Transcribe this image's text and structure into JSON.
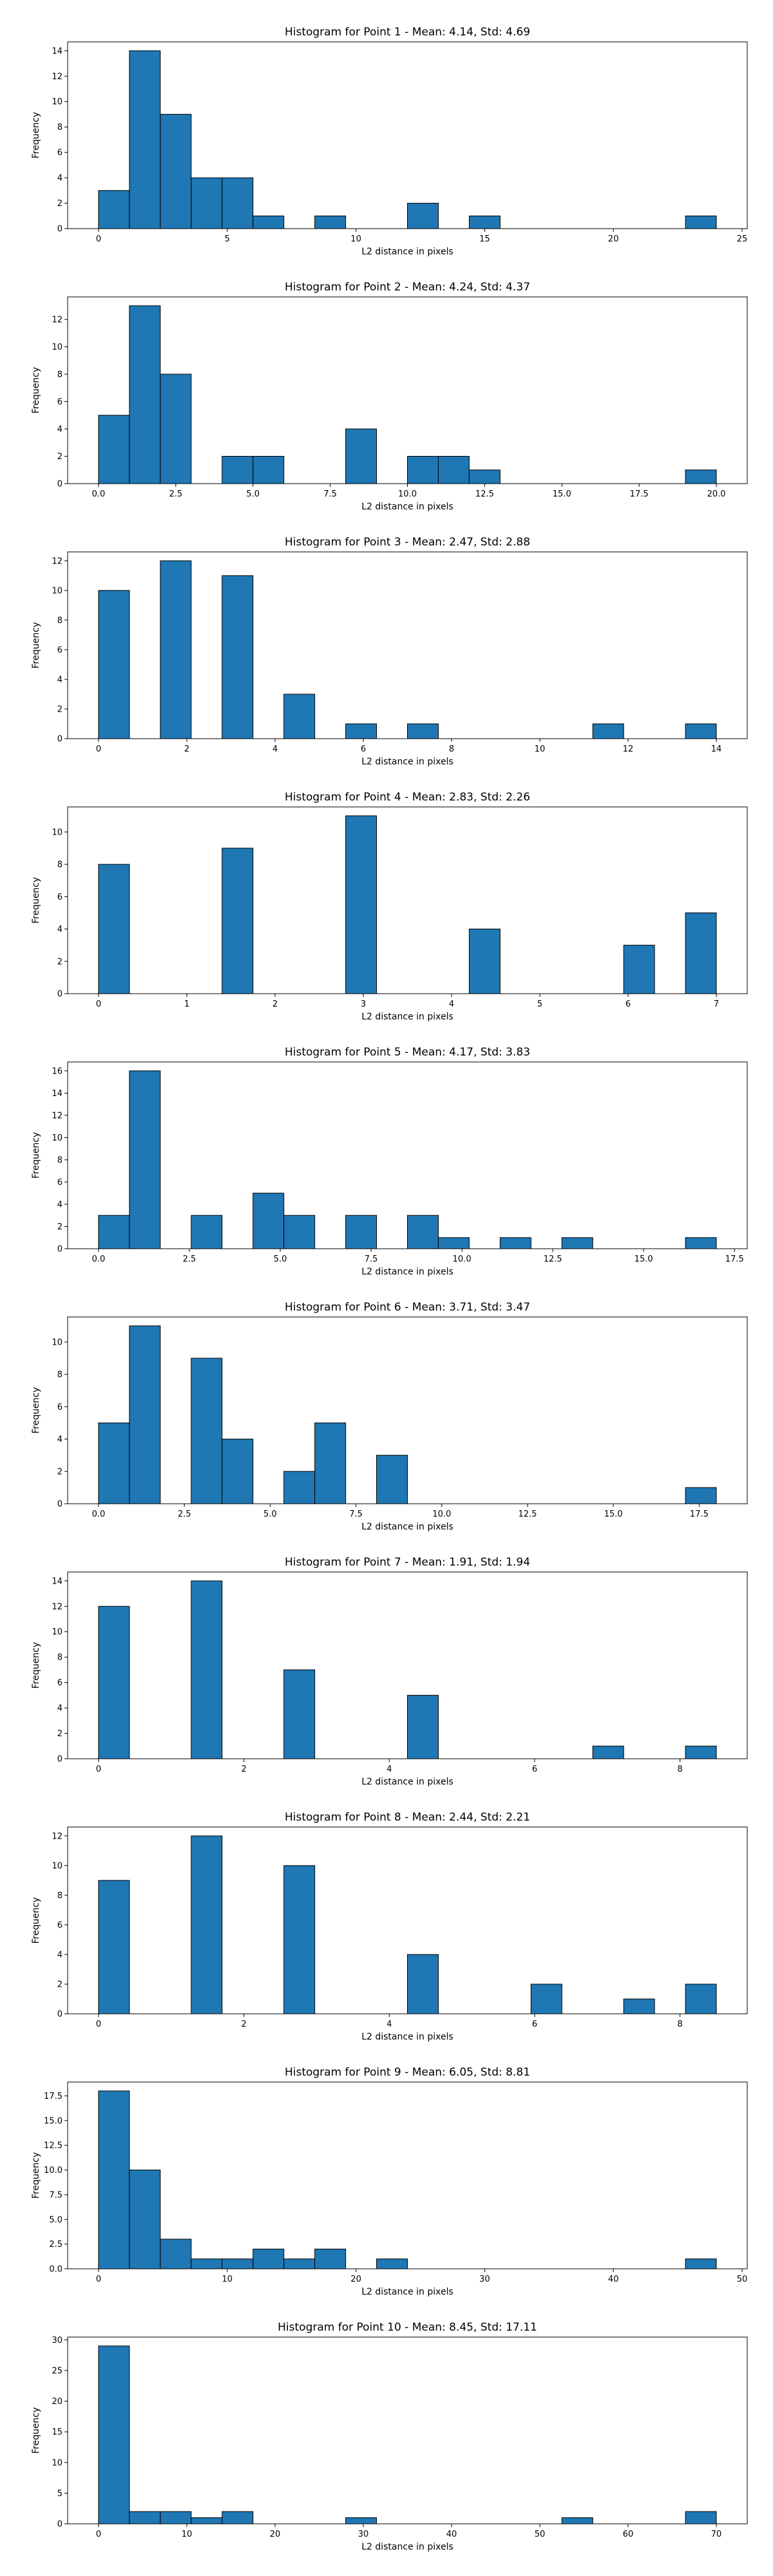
{
  "chart_data": [
    {
      "type": "bar",
      "title": "Histogram for Point 1 - Mean: 4.14, Std: 4.69",
      "xlabel": "L2 distance in pixels",
      "ylabel": "Frequency",
      "xlim": [
        -1.2,
        25.2
      ],
      "ylim": [
        0,
        14.7
      ],
      "xticks": [
        0,
        5,
        10,
        15,
        20,
        25
      ],
      "xtick_labels": [
        "0",
        "5",
        "10",
        "15",
        "20",
        "25"
      ],
      "yticks": [
        0,
        2,
        4,
        6,
        8,
        10,
        12,
        14
      ],
      "ytick_labels": [
        "0",
        "2",
        "4",
        "6",
        "8",
        "10",
        "12",
        "14"
      ],
      "bin_edges": [
        0,
        1.2,
        2.4,
        3.6,
        4.8,
        6.0,
        7.2,
        8.4,
        9.6,
        10.8,
        12.0,
        13.2,
        14.4,
        15.6,
        16.8,
        18.0,
        19.2,
        20.4,
        21.6,
        22.8,
        24.0
      ],
      "counts": [
        3,
        14,
        9,
        4,
        4,
        1,
        0,
        1,
        0,
        0,
        2,
        0,
        1,
        0,
        0,
        0,
        0,
        0,
        0,
        1
      ],
      "grid": false
    },
    {
      "type": "bar",
      "title": "Histogram for Point 2 - Mean: 4.24, Std: 4.37",
      "xlabel": "L2 distance in pixels",
      "ylabel": "Frequency",
      "xlim": [
        -1.0,
        21.0
      ],
      "ylim": [
        0,
        13.65
      ],
      "xticks": [
        0,
        2.5,
        5,
        7.5,
        10,
        12.5,
        15,
        17.5,
        20
      ],
      "xtick_labels": [
        "0.0",
        "2.5",
        "5.0",
        "7.5",
        "10.0",
        "12.5",
        "15.0",
        "17.5",
        "20.0"
      ],
      "yticks": [
        0,
        2,
        4,
        6,
        8,
        10,
        12
      ],
      "ytick_labels": [
        "0",
        "2",
        "4",
        "6",
        "8",
        "10",
        "12"
      ],
      "bin_edges": [
        0,
        1,
        2,
        3,
        4,
        5,
        6,
        7,
        8,
        9,
        10,
        11,
        12,
        13,
        14,
        15,
        16,
        17,
        18,
        19,
        20
      ],
      "counts": [
        5,
        13,
        8,
        0,
        2,
        2,
        0,
        0,
        4,
        0,
        2,
        2,
        1,
        0,
        0,
        0,
        0,
        0,
        0,
        1
      ],
      "grid": false
    },
    {
      "type": "bar",
      "title": "Histogram for Point 3 - Mean: 2.47, Std: 2.88",
      "xlabel": "L2 distance in pixels",
      "ylabel": "Frequency",
      "xlim": [
        -0.7,
        14.7
      ],
      "ylim": [
        0,
        12.6
      ],
      "xticks": [
        0,
        2,
        4,
        6,
        8,
        10,
        12,
        14
      ],
      "xtick_labels": [
        "0",
        "2",
        "4",
        "6",
        "8",
        "10",
        "12",
        "14"
      ],
      "yticks": [
        0,
        2,
        4,
        6,
        8,
        10,
        12
      ],
      "ytick_labels": [
        "0",
        "2",
        "4",
        "6",
        "8",
        "10",
        "12"
      ],
      "bin_edges": [
        0,
        0.7,
        1.4,
        2.1,
        2.8,
        3.5,
        4.2,
        4.9,
        5.6,
        6.3,
        7.0,
        7.7,
        8.4,
        9.1,
        9.8,
        10.5,
        11.2,
        11.9,
        12.6,
        13.3,
        14.0
      ],
      "counts": [
        10,
        0,
        12,
        0,
        11,
        0,
        3,
        0,
        1,
        0,
        1,
        0,
        0,
        0,
        0,
        0,
        1,
        0,
        0,
        1
      ],
      "grid": false
    },
    {
      "type": "bar",
      "title": "Histogram for Point 4 - Mean: 2.83, Std: 2.26",
      "xlabel": "L2 distance in pixels",
      "ylabel": "Frequency",
      "xlim": [
        -0.35,
        7.35
      ],
      "ylim": [
        0,
        11.55
      ],
      "xticks": [
        0,
        1,
        2,
        3,
        4,
        5,
        6,
        7
      ],
      "xtick_labels": [
        "0",
        "1",
        "2",
        "3",
        "4",
        "5",
        "6",
        "7"
      ],
      "yticks": [
        0,
        2,
        4,
        6,
        8,
        10
      ],
      "ytick_labels": [
        "0",
        "2",
        "4",
        "6",
        "8",
        "10"
      ],
      "bin_edges": [
        0,
        0.35,
        0.7,
        1.05,
        1.4,
        1.75,
        2.1,
        2.45,
        2.8,
        3.15,
        3.5,
        3.85,
        4.2,
        4.55,
        4.9,
        5.25,
        5.6,
        5.95,
        6.3,
        6.65,
        7.0
      ],
      "counts": [
        8,
        0,
        0,
        0,
        9,
        0,
        0,
        0,
        11,
        0,
        0,
        0,
        4,
        0,
        0,
        0,
        0,
        3,
        0,
        5
      ],
      "grid": false
    },
    {
      "type": "bar",
      "title": "Histogram for Point 5 - Mean: 4.17, Std: 3.83",
      "xlabel": "L2 distance in pixels",
      "ylabel": "Frequency",
      "xlim": [
        -0.85,
        17.85
      ],
      "ylim": [
        0,
        16.8
      ],
      "xticks": [
        0,
        2.5,
        5,
        7.5,
        10,
        12.5,
        15,
        17.5
      ],
      "xtick_labels": [
        "0.0",
        "2.5",
        "5.0",
        "7.5",
        "10.0",
        "12.5",
        "15.0",
        "17.5"
      ],
      "yticks": [
        0,
        2,
        4,
        6,
        8,
        10,
        12,
        14,
        16
      ],
      "ytick_labels": [
        "0",
        "2",
        "4",
        "6",
        "8",
        "10",
        "12",
        "14",
        "16"
      ],
      "bin_edges": [
        0,
        0.85,
        1.7,
        2.55,
        3.4,
        4.25,
        5.1,
        5.95,
        6.8,
        7.65,
        8.5,
        9.35,
        10.2,
        11.05,
        11.9,
        12.75,
        13.6,
        14.45,
        15.3,
        16.15,
        17.0
      ],
      "counts": [
        3,
        16,
        0,
        3,
        0,
        5,
        3,
        0,
        3,
        0,
        3,
        1,
        0,
        1,
        0,
        1,
        0,
        0,
        0,
        1
      ],
      "grid": false
    },
    {
      "type": "bar",
      "title": "Histogram for Point 6 - Mean: 3.71, Std: 3.47",
      "xlabel": "L2 distance in pixels",
      "ylabel": "Frequency",
      "xlim": [
        -0.9,
        18.9
      ],
      "ylim": [
        0,
        11.55
      ],
      "xticks": [
        0,
        2.5,
        5,
        7.5,
        10,
        12.5,
        15,
        17.5
      ],
      "xtick_labels": [
        "0.0",
        "2.5",
        "5.0",
        "7.5",
        "10.0",
        "12.5",
        "15.0",
        "17.5"
      ],
      "yticks": [
        0,
        2,
        4,
        6,
        8,
        10
      ],
      "ytick_labels": [
        "0",
        "2",
        "4",
        "6",
        "8",
        "10"
      ],
      "bin_edges": [
        0,
        0.9,
        1.8,
        2.7,
        3.6,
        4.5,
        5.4,
        6.3,
        7.2,
        8.1,
        9.0,
        9.9,
        10.8,
        11.7,
        12.6,
        13.5,
        14.4,
        15.3,
        16.2,
        17.1,
        18.0
      ],
      "counts": [
        5,
        11,
        0,
        9,
        4,
        0,
        2,
        5,
        0,
        3,
        0,
        0,
        0,
        0,
        0,
        0,
        0,
        0,
        0,
        1
      ],
      "grid": false
    },
    {
      "type": "bar",
      "title": "Histogram for Point 7 - Mean: 1.91, Std: 1.94",
      "xlabel": "L2 distance in pixels",
      "ylabel": "Frequency",
      "xlim": [
        -0.425,
        8.925
      ],
      "ylim": [
        0,
        14.7
      ],
      "xticks": [
        0,
        2,
        4,
        6,
        8
      ],
      "xtick_labels": [
        "0",
        "2",
        "4",
        "6",
        "8"
      ],
      "yticks": [
        0,
        2,
        4,
        6,
        8,
        10,
        12,
        14
      ],
      "ytick_labels": [
        "0",
        "2",
        "4",
        "6",
        "8",
        "10",
        "12",
        "14"
      ],
      "bin_edges": [
        0,
        0.425,
        0.85,
        1.275,
        1.7,
        2.125,
        2.55,
        2.975,
        3.4,
        3.825,
        4.25,
        4.675,
        5.1,
        5.525,
        5.95,
        6.375,
        6.8,
        7.225,
        7.65,
        8.075,
        8.5
      ],
      "counts": [
        12,
        0,
        0,
        14,
        0,
        0,
        7,
        0,
        0,
        0,
        5,
        0,
        0,
        0,
        0,
        0,
        1,
        0,
        0,
        1
      ],
      "grid": false
    },
    {
      "type": "bar",
      "title": "Histogram for Point 8 - Mean: 2.44, Std: 2.21",
      "xlabel": "L2 distance in pixels",
      "ylabel": "Frequency",
      "xlim": [
        -0.425,
        8.925
      ],
      "ylim": [
        0,
        12.6
      ],
      "xticks": [
        0,
        2,
        4,
        6,
        8
      ],
      "xtick_labels": [
        "0",
        "2",
        "4",
        "6",
        "8"
      ],
      "yticks": [
        0,
        2,
        4,
        6,
        8,
        10,
        12
      ],
      "ytick_labels": [
        "0",
        "2",
        "4",
        "6",
        "8",
        "10",
        "12"
      ],
      "bin_edges": [
        0,
        0.425,
        0.85,
        1.275,
        1.7,
        2.125,
        2.55,
        2.975,
        3.4,
        3.825,
        4.25,
        4.675,
        5.1,
        5.525,
        5.95,
        6.375,
        6.8,
        7.225,
        7.65,
        8.075,
        8.5
      ],
      "counts": [
        9,
        0,
        0,
        12,
        0,
        0,
        10,
        0,
        0,
        0,
        4,
        0,
        0,
        0,
        2,
        0,
        0,
        1,
        0,
        2
      ],
      "grid": false
    },
    {
      "type": "bar",
      "title": "Histogram for Point 9 - Mean: 6.05, Std: 8.81",
      "xlabel": "L2 distance in pixels",
      "ylabel": "Frequency",
      "xlim": [
        -2.4,
        50.4
      ],
      "ylim": [
        0,
        18.9
      ],
      "xticks": [
        0,
        10,
        20,
        30,
        40,
        50
      ],
      "xtick_labels": [
        "0",
        "10",
        "20",
        "30",
        "40",
        "50"
      ],
      "yticks": [
        0,
        2.5,
        5,
        7.5,
        10,
        12.5,
        15,
        17.5
      ],
      "ytick_labels": [
        "0.0",
        "2.5",
        "5.0",
        "7.5",
        "10.0",
        "12.5",
        "15.0",
        "17.5"
      ],
      "bin_edges": [
        0,
        2.4,
        4.8,
        7.2,
        9.6,
        12.0,
        14.4,
        16.8,
        19.2,
        21.6,
        24.0,
        26.4,
        28.8,
        31.2,
        33.6,
        36.0,
        38.4,
        40.8,
        43.2,
        45.6,
        48.0
      ],
      "counts": [
        18,
        10,
        3,
        1,
        1,
        2,
        1,
        2,
        0,
        1,
        0,
        0,
        0,
        0,
        0,
        0,
        0,
        0,
        0,
        1
      ],
      "grid": false
    },
    {
      "type": "bar",
      "title": "Histogram for Point 10 - Mean: 8.45, Std: 17.11",
      "xlabel": "L2 distance in pixels",
      "ylabel": "Frequency",
      "xlim": [
        -3.5,
        73.5
      ],
      "ylim": [
        0,
        30.45
      ],
      "xticks": [
        0,
        10,
        20,
        30,
        40,
        50,
        60,
        70
      ],
      "xtick_labels": [
        "0",
        "10",
        "20",
        "30",
        "40",
        "50",
        "60",
        "70"
      ],
      "yticks": [
        0,
        5,
        10,
        15,
        20,
        25,
        30
      ],
      "ytick_labels": [
        "0",
        "5",
        "10",
        "15",
        "20",
        "25",
        "30"
      ],
      "bin_edges": [
        0,
        3.5,
        7.0,
        10.5,
        14.0,
        17.5,
        21.0,
        24.5,
        28.0,
        31.5,
        35.0,
        38.5,
        42.0,
        45.5,
        49.0,
        52.5,
        56.0,
        59.5,
        63.0,
        66.5,
        70.0
      ],
      "counts": [
        29,
        2,
        2,
        1,
        2,
        0,
        0,
        0,
        1,
        0,
        0,
        0,
        0,
        0,
        0,
        1,
        0,
        0,
        0,
        2
      ],
      "grid": false
    }
  ],
  "colors": {
    "bar_fill": "#1f77b4",
    "bar_edge": "#000000",
    "background": "#ffffff"
  }
}
